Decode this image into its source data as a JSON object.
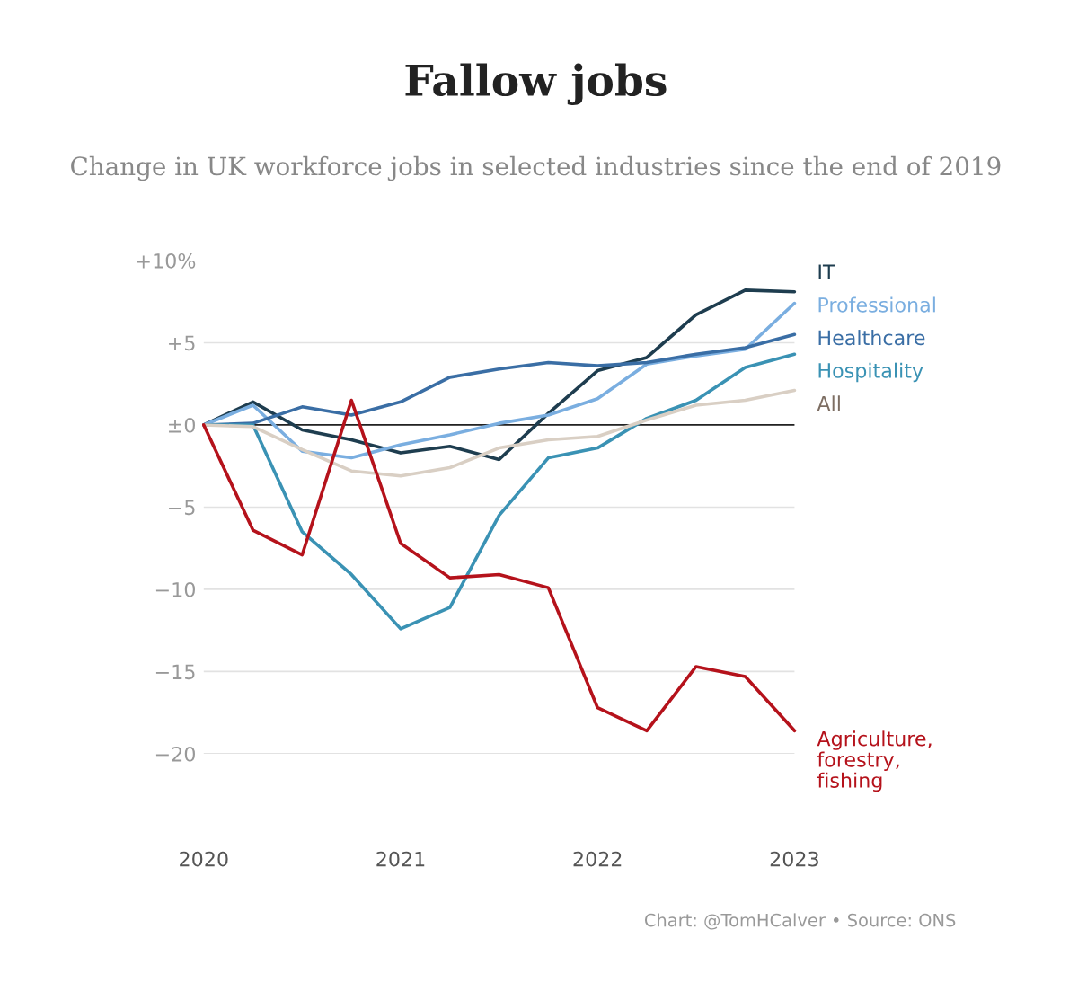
{
  "chart_data": {
    "type": "line",
    "title": "Fallow jobs",
    "subtitle": "Change in UK workforce jobs in selected industries since the end of 2019",
    "x": [
      2020,
      2020.25,
      2020.5,
      2020.75,
      2021,
      2021.25,
      2021.5,
      2021.75,
      2022,
      2022.25,
      2022.5,
      2022.75,
      2023
    ],
    "series": [
      {
        "name": "IT",
        "color": "#1e3d4f",
        "values": [
          0,
          1.4,
          -0.3,
          -0.9,
          -1.7,
          -1.3,
          -2.1,
          0.7,
          3.3,
          4.1,
          6.7,
          8.2,
          8.1
        ]
      },
      {
        "name": "Professional",
        "color": "#7aaee0",
        "values": [
          0,
          1.2,
          -1.6,
          -2.0,
          -1.2,
          -0.6,
          0.1,
          0.6,
          1.6,
          3.7,
          4.2,
          4.6,
          7.4
        ]
      },
      {
        "name": "Healthcare",
        "color": "#3a6ea5",
        "values": [
          0,
          0.1,
          1.1,
          0.6,
          1.4,
          2.9,
          3.4,
          3.8,
          3.6,
          3.8,
          4.3,
          4.7,
          5.5
        ]
      },
      {
        "name": "Hospitality",
        "color": "#3a92b4",
        "values": [
          0,
          0,
          -6.5,
          -9.1,
          -12.4,
          -11.1,
          -5.5,
          -2.0,
          -1.4,
          0.4,
          1.5,
          3.5,
          4.3
        ]
      },
      {
        "name": "All",
        "color": "#d9cfc4",
        "values": [
          0,
          -0.1,
          -1.5,
          -2.8,
          -3.1,
          -2.6,
          -1.4,
          -0.9,
          -0.7,
          0.3,
          1.2,
          1.5,
          2.1
        ]
      },
      {
        "name": "Agriculture, forestry, fishing",
        "color": "#b5121b",
        "values": [
          0,
          -6.4,
          -7.9,
          1.5,
          -7.2,
          -9.3,
          -9.1,
          -9.9,
          -17.2,
          -18.6,
          -14.7,
          -15.3,
          -18.6
        ]
      }
    ],
    "xlim": [
      2020,
      2023
    ],
    "ylim": [
      -20,
      10
    ],
    "xticks": [
      2020,
      2021,
      2022,
      2023
    ],
    "yticks": [
      {
        "value": 10,
        "label": "+10%"
      },
      {
        "value": 5,
        "label": "+5"
      },
      {
        "value": 0,
        "label": "±0"
      },
      {
        "value": -5,
        "label": "−5"
      },
      {
        "value": -10,
        "label": "−10"
      },
      {
        "value": -15,
        "label": "−15"
      },
      {
        "value": -20,
        "label": "−20"
      }
    ],
    "ref_lines": [
      {
        "axis": "y",
        "value": 0,
        "color": "#222222"
      }
    ],
    "grid": "y",
    "legend": false,
    "annotations": [
      "Chart: @TomHCalver • Source: ONS"
    ]
  }
}
